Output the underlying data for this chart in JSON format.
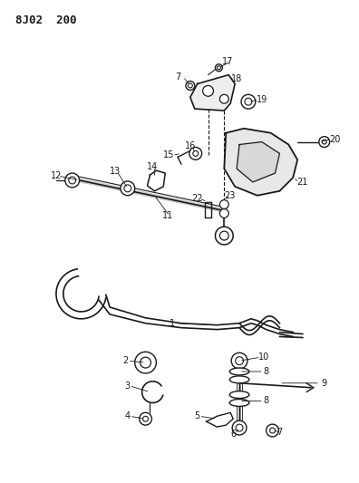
{
  "title": "8J02  200",
  "background_color": "#ffffff",
  "line_color": "#1a1a1a",
  "label_color": "#1a1a1a",
  "fig_width": 3.96,
  "fig_height": 5.33,
  "dpi": 100
}
